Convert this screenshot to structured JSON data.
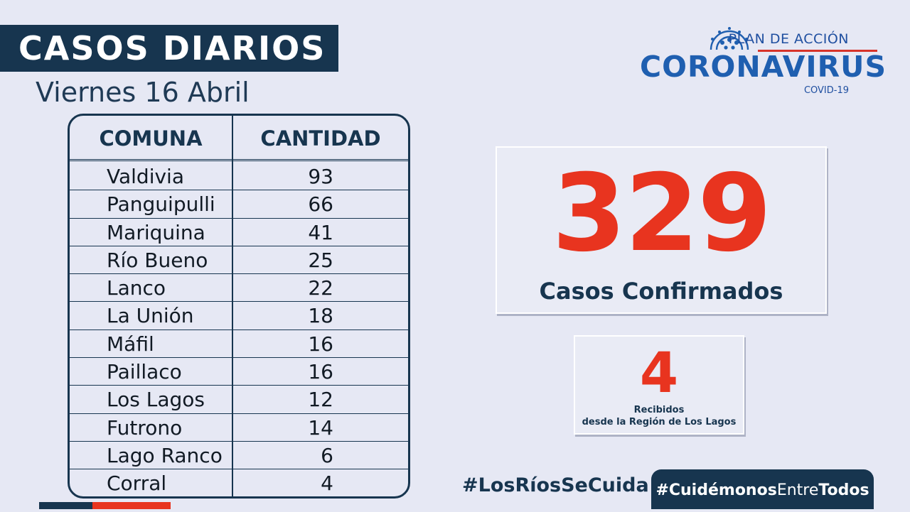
{
  "header": {
    "title": "CASOS DIARIOS",
    "date": "Viernes 16 Abril"
  },
  "logo": {
    "plan": "PLAN DE ACCIÓN",
    "main": "CORONAVIRUS",
    "sub": "COVID-19",
    "icon": "dotted-dome-icon"
  },
  "table": {
    "headers": [
      "COMUNA",
      "CANTIDAD"
    ],
    "rows": [
      {
        "comuna": "Valdivia",
        "cantidad": "93"
      },
      {
        "comuna": "Panguipulli",
        "cantidad": "66"
      },
      {
        "comuna": "Mariquina",
        "cantidad": "41"
      },
      {
        "comuna": "Río Bueno",
        "cantidad": "25"
      },
      {
        "comuna": "Lanco",
        "cantidad": "22"
      },
      {
        "comuna": "La Unión",
        "cantidad": "18"
      },
      {
        "comuna": "Máfil",
        "cantidad": "16"
      },
      {
        "comuna": "Paillaco",
        "cantidad": "16"
      },
      {
        "comuna": "Los Lagos",
        "cantidad": "12"
      },
      {
        "comuna": "Futrono",
        "cantidad": "14"
      },
      {
        "comuna": "Lago Ranco",
        "cantidad": "6"
      },
      {
        "comuna": "Corral",
        "cantidad": "4"
      }
    ]
  },
  "confirmed": {
    "number": "329",
    "label": "Casos Confirmados"
  },
  "received": {
    "number": "4",
    "label_line1": "Recibidos",
    "label_line2": "desde la Región de Los Lagos"
  },
  "hashtags": {
    "primary": "#LosRíosSeCuida",
    "secondary_part1": "#Cuidémonos",
    "secondary_part2": "Entre",
    "secondary_part3": "Todos"
  },
  "colors": {
    "navy": "#17354f",
    "red": "#e8341f",
    "blue": "#1f5fb0",
    "background": "#e6e8f4"
  }
}
